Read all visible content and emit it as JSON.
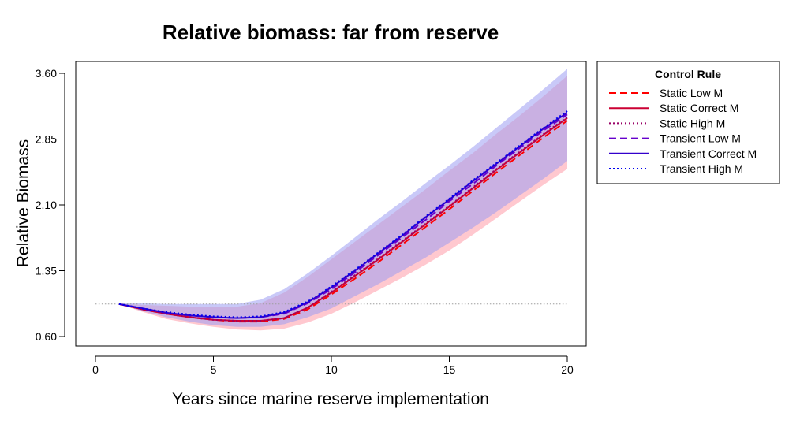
{
  "chart_data": {
    "type": "line",
    "title": "Relative biomass: far from reserve",
    "xlabel": "Years since marine reserve implementation",
    "ylabel": "Relative Biomass",
    "xlim": [
      0,
      20
    ],
    "ylim": [
      0.6,
      3.6
    ],
    "xticks": [
      "0",
      "5",
      "10",
      "15",
      "20"
    ],
    "yticks": [
      "0.60",
      "1.35",
      "2.10",
      "2.85",
      "3.60"
    ],
    "reference_line": {
      "y": 0.97,
      "style": "dotted",
      "color": "#9e9e9e"
    },
    "legend": {
      "title": "Control Rule",
      "placement": "right"
    },
    "x": [
      1,
      2,
      3,
      4,
      5,
      6,
      7,
      8,
      9,
      10,
      11,
      12,
      13,
      14,
      15,
      16,
      17,
      18,
      19,
      20
    ],
    "bands": [
      {
        "name": "Static",
        "color": "#ff9aa8",
        "lower": [
          0.97,
          0.88,
          0.8,
          0.75,
          0.71,
          0.68,
          0.67,
          0.69,
          0.76,
          0.86,
          0.99,
          1.13,
          1.27,
          1.42,
          1.58,
          1.76,
          1.95,
          2.14,
          2.33,
          2.51
        ],
        "upper": [
          0.97,
          0.96,
          0.95,
          0.94,
          0.94,
          0.94,
          0.98,
          1.1,
          1.28,
          1.48,
          1.68,
          1.88,
          2.08,
          2.28,
          2.49,
          2.69,
          2.91,
          3.12,
          3.34,
          3.57
        ]
      },
      {
        "name": "Transient",
        "color": "#9d9df2",
        "lower": [
          0.97,
          0.89,
          0.82,
          0.77,
          0.73,
          0.71,
          0.71,
          0.74,
          0.82,
          0.92,
          1.06,
          1.2,
          1.35,
          1.5,
          1.67,
          1.84,
          2.02,
          2.21,
          2.4,
          2.6
        ],
        "upper": [
          0.98,
          0.98,
          0.97,
          0.97,
          0.97,
          0.97,
          1.02,
          1.14,
          1.32,
          1.52,
          1.73,
          1.94,
          2.14,
          2.35,
          2.55,
          2.76,
          2.98,
          3.2,
          3.42,
          3.65
        ]
      }
    ],
    "series": [
      {
        "name": "Static Low M",
        "color": "#ff0000",
        "dash": "dashed",
        "values": [
          0.97,
          0.91,
          0.86,
          0.82,
          0.79,
          0.77,
          0.77,
          0.8,
          0.91,
          1.08,
          1.26,
          1.45,
          1.65,
          1.85,
          2.05,
          2.26,
          2.47,
          2.67,
          2.87,
          3.06
        ]
      },
      {
        "name": "Static Correct M",
        "color": "#cc0033",
        "dash": "solid",
        "values": [
          0.97,
          0.91,
          0.86,
          0.82,
          0.79,
          0.78,
          0.78,
          0.81,
          0.93,
          1.1,
          1.29,
          1.48,
          1.68,
          1.88,
          2.08,
          2.29,
          2.5,
          2.7,
          2.9,
          3.09
        ]
      },
      {
        "name": "Static High M",
        "color": "#990066",
        "dash": "dotted",
        "values": [
          0.97,
          0.91,
          0.86,
          0.82,
          0.79,
          0.78,
          0.78,
          0.81,
          0.93,
          1.11,
          1.3,
          1.49,
          1.69,
          1.89,
          2.09,
          2.3,
          2.51,
          2.71,
          2.91,
          3.1
        ]
      },
      {
        "name": "Transient Low M",
        "color": "#6600cc",
        "dash": "dashed",
        "values": [
          0.97,
          0.92,
          0.87,
          0.84,
          0.82,
          0.81,
          0.82,
          0.86,
          0.98,
          1.14,
          1.33,
          1.53,
          1.73,
          1.93,
          2.14,
          2.34,
          2.55,
          2.75,
          2.95,
          3.13
        ]
      },
      {
        "name": "Transient Correct M",
        "color": "#3300cc",
        "dash": "solid",
        "values": [
          0.97,
          0.92,
          0.87,
          0.84,
          0.82,
          0.81,
          0.82,
          0.87,
          0.99,
          1.16,
          1.35,
          1.55,
          1.75,
          1.96,
          2.16,
          2.37,
          2.57,
          2.77,
          2.97,
          3.15
        ]
      },
      {
        "name": "Transient High M",
        "color": "#0000ee",
        "dash": "dotted",
        "values": [
          0.97,
          0.92,
          0.88,
          0.85,
          0.83,
          0.82,
          0.83,
          0.88,
          1.0,
          1.17,
          1.36,
          1.56,
          1.76,
          1.97,
          2.17,
          2.38,
          2.58,
          2.78,
          2.98,
          3.17
        ]
      }
    ]
  }
}
